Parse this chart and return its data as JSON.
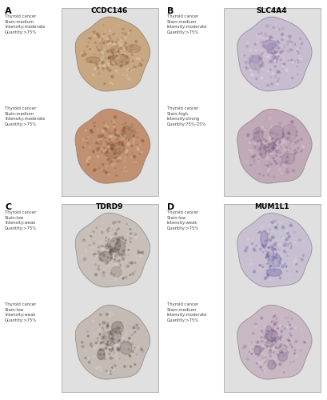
{
  "panels": [
    {
      "label": "A",
      "title": "CCDC146",
      "images": [
        {
          "text": "Thyroid cancer\nStain:medium\nIntensity:moderate\nQuantity:>75%",
          "base_color": "#c8a882",
          "dark_color": "#8b5e3c",
          "light_color": "#e8d5b8",
          "bg_color": "#d4b896"
        },
        {
          "text": "Thyroid cancer\nStain:medium\nIntensity:moderate\nQuantity:>75%",
          "base_color": "#c09070",
          "dark_color": "#7a4e2c",
          "light_color": "#ddc8a8",
          "bg_color": "#c8a880"
        }
      ]
    },
    {
      "label": "B",
      "title": "SLC4A4",
      "images": [
        {
          "text": "Thyroid cancer\nStain:medium\nIntensity:moderate\nQuantity:>75%",
          "base_color": "#c8bcd0",
          "dark_color": "#8878a0",
          "light_color": "#e8e0f0",
          "bg_color": "#d0c4dc"
        },
        {
          "text": "Thyroid cancer\nStain:high\nIntensity:strong\nQuantity:75%-25%",
          "base_color": "#c0aab8",
          "dark_color": "#806080",
          "light_color": "#ddd0dc",
          "bg_color": "#c8b0c0"
        }
      ]
    },
    {
      "label": "C",
      "title": "TDRD9",
      "images": [
        {
          "text": "Thyroid cancer\nStain:low\nIntensity:weak\nQuantity:>75%",
          "base_color": "#c8c0b8",
          "dark_color": "#605850",
          "light_color": "#e0d8d4",
          "bg_color": "#ccc4bc"
        },
        {
          "text": "Thyroid cancer\nStain:low\nIntensity:weak\nQuantity:>75%",
          "base_color": "#c4bcb4",
          "dark_color": "#585048",
          "light_color": "#dcd4d0",
          "bg_color": "#c8c0b8"
        }
      ]
    },
    {
      "label": "D",
      "title": "MUM1L1",
      "images": [
        {
          "text": "Thyroid cancer\nStain:low\nIntensity:weak\nQuantity:>75%",
          "base_color": "#c8c0d0",
          "dark_color": "#6860a0",
          "light_color": "#e0d8e8",
          "bg_color": "#ccc8d8"
        },
        {
          "text": "Thyroid cancer\nStain:medium\nIntensity:moderate\nQuantity:>75%",
          "base_color": "#c8b8c4",
          "dark_color": "#806088",
          "light_color": "#ddd0dc",
          "bg_color": "#ccb8c8"
        }
      ]
    }
  ],
  "fig_bg": "#ffffff",
  "box_bg": "#e0e0e0",
  "box_border": "#aaaaaa",
  "text_color": "#444444",
  "title_color": "#000000",
  "label_color": "#000000"
}
